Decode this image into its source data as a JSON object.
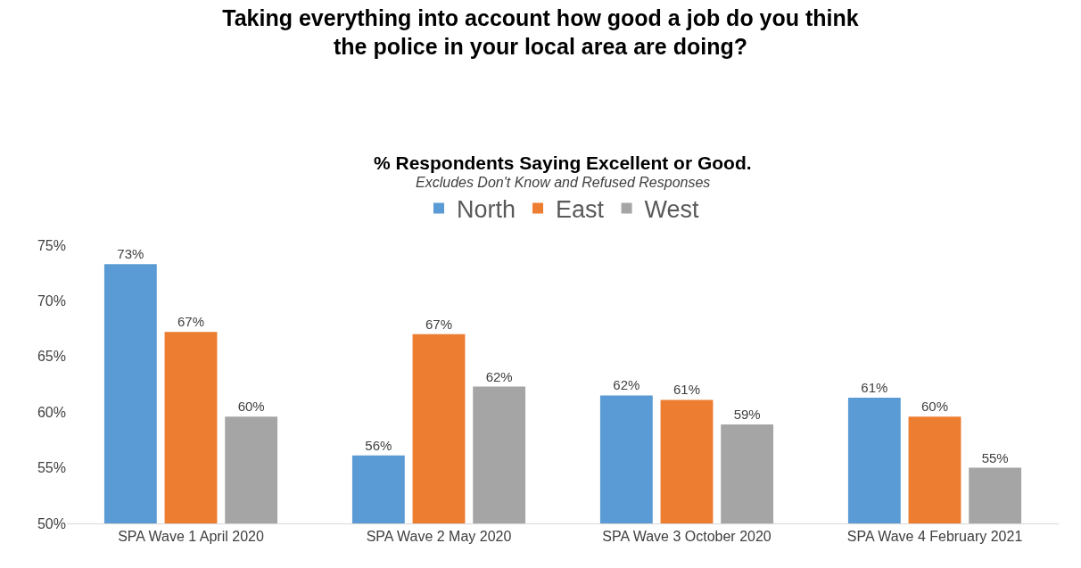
{
  "chart_data": {
    "type": "bar",
    "title": "Taking everything into account how good a job do you think the police in your local area are doing?",
    "subtitle": "% Respondents Saying Excellent or Good.",
    "annotations": [
      "Excludes Don't Know and Refused Responses"
    ],
    "categories": [
      "SPA Wave 1 April 2020",
      "SPA Wave 2 May 2020",
      "SPA Wave 3 October 2020",
      "SPA Wave 4 February 2021"
    ],
    "series": [
      {
        "name": "North",
        "color": "#5b9bd5",
        "values": [
          73.3,
          56.1,
          61.5,
          61.3
        ],
        "value_labels": [
          "73%",
          "56%",
          "62%",
          "61%"
        ]
      },
      {
        "name": "East",
        "color": "#ed7d31",
        "values": [
          67.2,
          67.0,
          61.1,
          59.6
        ],
        "value_labels": [
          "67%",
          "67%",
          "61%",
          "60%"
        ]
      },
      {
        "name": "West",
        "color": "#a5a5a5",
        "values": [
          59.6,
          62.3,
          58.9,
          55.0
        ],
        "value_labels": [
          "60%",
          "62%",
          "59%",
          "55%"
        ]
      }
    ],
    "ylim": [
      50,
      75
    ],
    "yticks": [
      {
        "value": 50,
        "label": "50%"
      },
      {
        "value": 55,
        "label": "55%"
      },
      {
        "value": 60,
        "label": "60%"
      },
      {
        "value": 65,
        "label": "65%"
      },
      {
        "value": 70,
        "label": "70%"
      },
      {
        "value": 75,
        "label": "75%"
      }
    ],
    "grid": false,
    "legend": "top"
  }
}
